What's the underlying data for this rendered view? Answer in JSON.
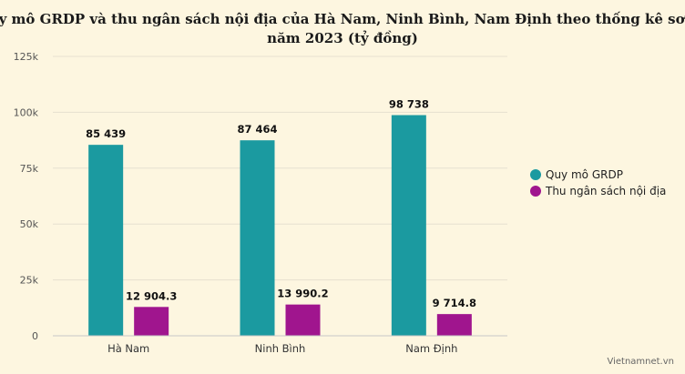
{
  "chart_data": {
    "type": "bar",
    "title_lines": [
      "Quy mô GRDP và thu ngân sách nội địa của Hà Nam, Ninh Bình, Nam Định theo thống kê sơ bộ",
      "năm 2023 (tỷ đồng)"
    ],
    "categories": [
      "Hà Nam",
      "Ninh Bình",
      "Nam Định"
    ],
    "series": [
      {
        "name": "Quy mô GRDP",
        "color": "#1b9aa0",
        "values": [
          85439,
          87464,
          98738
        ],
        "labels": [
          "85 439",
          "87 464",
          "98 738"
        ]
      },
      {
        "name": "Thu ngân sách nội địa",
        "color": "#a0158e",
        "values": [
          12904.3,
          13990.2,
          9714.8
        ],
        "labels": [
          "12 904.3",
          "13 990.2",
          "9 714.8"
        ]
      }
    ],
    "ylim": [
      0,
      125000
    ],
    "yticks": [
      0,
      25000,
      50000,
      75000,
      100000,
      125000
    ],
    "ytick_labels": [
      "0",
      "25k",
      "50k",
      "75k",
      "100k",
      "125k"
    ],
    "xlabel": "",
    "ylabel": "",
    "grid": true,
    "legend_position": "right"
  },
  "credit": "Vietnamnet.vn"
}
